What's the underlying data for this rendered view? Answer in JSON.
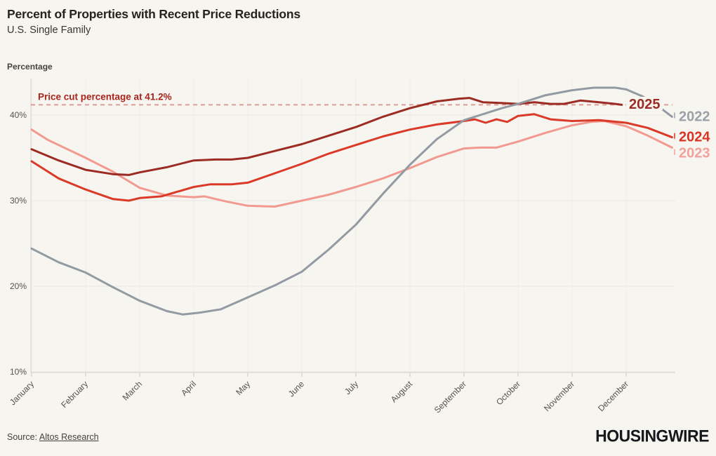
{
  "header": {
    "title": "Percent of Properties with Recent Price Reductions",
    "subtitle": "U.S. Single Family",
    "y_axis_title": "Percentage"
  },
  "chart_data": {
    "type": "line",
    "title": "Percent of Properties with Recent Price Reductions",
    "subtitle": "U.S. Single Family",
    "ylabel": "Percentage",
    "ylim": [
      10,
      44
    ],
    "y_tick_labels": [
      "10%",
      "20%",
      "30%",
      "40%"
    ],
    "y_tick_values": [
      10,
      20,
      30,
      40
    ],
    "grid": "horizontal-and-faint-vertical",
    "legend_position": "line-end-labels",
    "x_categories": [
      "January",
      "February",
      "March",
      "April",
      "May",
      "June",
      "July",
      "August",
      "September",
      "October",
      "November",
      "December"
    ],
    "annotation": {
      "label": "Price cut percentage at 41.2%",
      "value": 41.2,
      "style": "dashed",
      "line_color": "#dd9d97",
      "text_color": "#a8241d"
    },
    "series": [
      {
        "name": "2023",
        "color": "#f29a90",
        "label_color": "#f2a19a",
        "points": [
          [
            0,
            38.3
          ],
          [
            0.3,
            37.1
          ],
          [
            0.5,
            36.5
          ],
          [
            1,
            35.0
          ],
          [
            1.5,
            33.4
          ],
          [
            2,
            31.5
          ],
          [
            2.5,
            30.6
          ],
          [
            3,
            30.4
          ],
          [
            3.2,
            30.5
          ],
          [
            3.6,
            29.9
          ],
          [
            4,
            29.4
          ],
          [
            4.5,
            29.3
          ],
          [
            5,
            30.0
          ],
          [
            5.5,
            30.7
          ],
          [
            6,
            31.6
          ],
          [
            6.5,
            32.6
          ],
          [
            7,
            33.8
          ],
          [
            7.5,
            35.1
          ],
          [
            8,
            36.1
          ],
          [
            8.3,
            36.2
          ],
          [
            8.6,
            36.2
          ],
          [
            9,
            36.9
          ],
          [
            9.5,
            37.9
          ],
          [
            10,
            38.8
          ],
          [
            10.35,
            39.2
          ],
          [
            10.6,
            39.3
          ],
          [
            11,
            38.7
          ],
          [
            11.4,
            37.6
          ],
          [
            11.85,
            36.2
          ]
        ]
      },
      {
        "name": "2024",
        "color": "#dc3a28",
        "label_color": "#d93526",
        "points": [
          [
            0,
            34.6
          ],
          [
            0.5,
            32.6
          ],
          [
            1,
            31.3
          ],
          [
            1.5,
            30.2
          ],
          [
            1.8,
            30.0
          ],
          [
            2,
            30.3
          ],
          [
            2.4,
            30.5
          ],
          [
            3,
            31.6
          ],
          [
            3.3,
            31.9
          ],
          [
            3.7,
            31.9
          ],
          [
            4,
            32.1
          ],
          [
            4.5,
            33.2
          ],
          [
            5,
            34.3
          ],
          [
            5.5,
            35.5
          ],
          [
            6,
            36.5
          ],
          [
            6.5,
            37.5
          ],
          [
            7,
            38.3
          ],
          [
            7.5,
            38.9
          ],
          [
            8,
            39.3
          ],
          [
            8.2,
            39.5
          ],
          [
            8.4,
            39.1
          ],
          [
            8.6,
            39.5
          ],
          [
            8.8,
            39.2
          ],
          [
            9,
            39.9
          ],
          [
            9.3,
            40.1
          ],
          [
            9.6,
            39.5
          ],
          [
            10,
            39.3
          ],
          [
            10.5,
            39.4
          ],
          [
            11,
            39.1
          ],
          [
            11.4,
            38.5
          ],
          [
            11.85,
            37.4
          ]
        ]
      },
      {
        "name": "2025",
        "color": "#9c2b23",
        "label_color": "#9c2b23",
        "points": [
          [
            0,
            36.0
          ],
          [
            0.5,
            34.7
          ],
          [
            1,
            33.6
          ],
          [
            1.5,
            33.1
          ],
          [
            1.8,
            33.0
          ],
          [
            2,
            33.3
          ],
          [
            2.5,
            33.9
          ],
          [
            3,
            34.7
          ],
          [
            3.4,
            34.8
          ],
          [
            3.7,
            34.8
          ],
          [
            4,
            35.0
          ],
          [
            4.5,
            35.8
          ],
          [
            5,
            36.6
          ],
          [
            5.5,
            37.6
          ],
          [
            6,
            38.6
          ],
          [
            6.5,
            39.8
          ],
          [
            7,
            40.8
          ],
          [
            7.5,
            41.6
          ],
          [
            7.9,
            41.9
          ],
          [
            8.1,
            42.0
          ],
          [
            8.35,
            41.5
          ],
          [
            8.7,
            41.4
          ],
          [
            9,
            41.3
          ],
          [
            9.3,
            41.5
          ],
          [
            9.6,
            41.3
          ],
          [
            9.85,
            41.3
          ],
          [
            10.15,
            41.7
          ],
          [
            10.5,
            41.5
          ],
          [
            10.8,
            41.3
          ],
          [
            10.92,
            41.2
          ]
        ]
      },
      {
        "name": "2022",
        "color": "#929aa2",
        "label_color": "#9aa1a8",
        "points": [
          [
            0,
            24.4
          ],
          [
            0.5,
            22.8
          ],
          [
            1,
            21.6
          ],
          [
            1.5,
            19.9
          ],
          [
            2,
            18.3
          ],
          [
            2.5,
            17.1
          ],
          [
            2.8,
            16.7
          ],
          [
            3.1,
            16.9
          ],
          [
            3.5,
            17.3
          ],
          [
            4,
            18.7
          ],
          [
            4.5,
            20.1
          ],
          [
            5,
            21.7
          ],
          [
            5.5,
            24.3
          ],
          [
            6,
            27.2
          ],
          [
            6.5,
            30.8
          ],
          [
            7,
            34.2
          ],
          [
            7.5,
            37.2
          ],
          [
            8,
            39.4
          ],
          [
            8.3,
            40.0
          ],
          [
            8.7,
            40.8
          ],
          [
            9,
            41.3
          ],
          [
            9.5,
            42.3
          ],
          [
            10,
            42.9
          ],
          [
            10.4,
            43.2
          ],
          [
            10.8,
            43.2
          ],
          [
            11,
            43.0
          ],
          [
            11.3,
            42.2
          ],
          [
            11.6,
            41.0
          ],
          [
            11.85,
            39.8
          ]
        ]
      }
    ]
  },
  "footer": {
    "source_prefix": "Source: ",
    "source_link": "Altos Research",
    "logo": "HOUSINGWIRE"
  },
  "colors": {
    "background": "#f7f5f0",
    "grid": "#e9e6e0",
    "grid_vertical": "#efede7",
    "axis_line": "#d5d2cc",
    "tick": "#c9c6c0",
    "axis_text": "#56524c"
  }
}
